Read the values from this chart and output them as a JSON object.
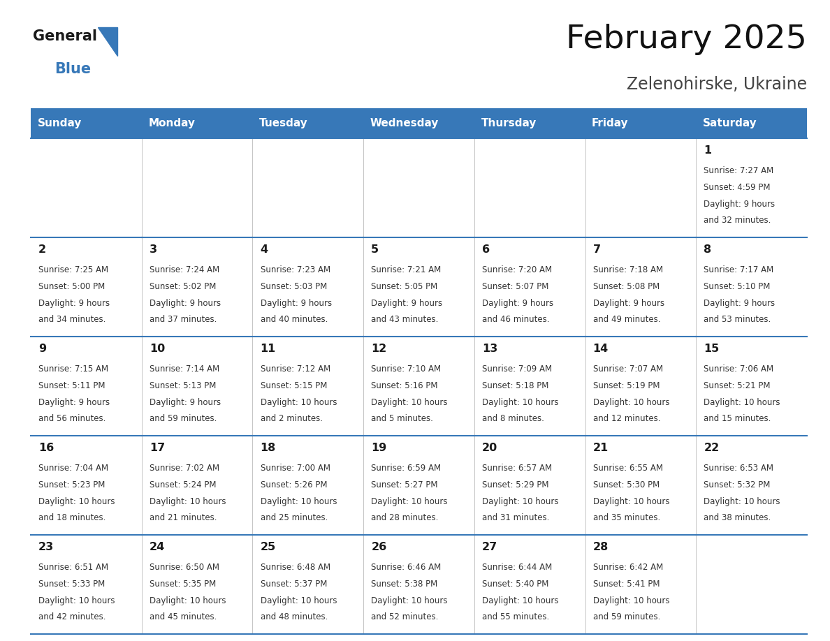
{
  "title": "February 2025",
  "subtitle": "Zelenohirske, Ukraine",
  "header_bg_color": "#3778b8",
  "header_text_color": "#ffffff",
  "day_names": [
    "Sunday",
    "Monday",
    "Tuesday",
    "Wednesday",
    "Thursday",
    "Friday",
    "Saturday"
  ],
  "cell_bg_odd": "#f0f4f8",
  "cell_bg_even": "#ffffff",
  "day_number_color": "#1a1a1a",
  "info_text_color": "#333333",
  "grid_line_color": "#3778b8",
  "separator_color": "#bbbbbb",
  "calendar": [
    [
      null,
      null,
      null,
      null,
      null,
      null,
      {
        "day": 1,
        "sunrise": "7:27 AM",
        "sunset": "4:59 PM",
        "daylight": "9 hours",
        "daylight2": "and 32 minutes."
      }
    ],
    [
      {
        "day": 2,
        "sunrise": "7:25 AM",
        "sunset": "5:00 PM",
        "daylight": "9 hours",
        "daylight2": "and 34 minutes."
      },
      {
        "day": 3,
        "sunrise": "7:24 AM",
        "sunset": "5:02 PM",
        "daylight": "9 hours",
        "daylight2": "and 37 minutes."
      },
      {
        "day": 4,
        "sunrise": "7:23 AM",
        "sunset": "5:03 PM",
        "daylight": "9 hours",
        "daylight2": "and 40 minutes."
      },
      {
        "day": 5,
        "sunrise": "7:21 AM",
        "sunset": "5:05 PM",
        "daylight": "9 hours",
        "daylight2": "and 43 minutes."
      },
      {
        "day": 6,
        "sunrise": "7:20 AM",
        "sunset": "5:07 PM",
        "daylight": "9 hours",
        "daylight2": "and 46 minutes."
      },
      {
        "day": 7,
        "sunrise": "7:18 AM",
        "sunset": "5:08 PM",
        "daylight": "9 hours",
        "daylight2": "and 49 minutes."
      },
      {
        "day": 8,
        "sunrise": "7:17 AM",
        "sunset": "5:10 PM",
        "daylight": "9 hours",
        "daylight2": "and 53 minutes."
      }
    ],
    [
      {
        "day": 9,
        "sunrise": "7:15 AM",
        "sunset": "5:11 PM",
        "daylight": "9 hours",
        "daylight2": "and 56 minutes."
      },
      {
        "day": 10,
        "sunrise": "7:14 AM",
        "sunset": "5:13 PM",
        "daylight": "9 hours",
        "daylight2": "and 59 minutes."
      },
      {
        "day": 11,
        "sunrise": "7:12 AM",
        "sunset": "5:15 PM",
        "daylight": "10 hours",
        "daylight2": "and 2 minutes."
      },
      {
        "day": 12,
        "sunrise": "7:10 AM",
        "sunset": "5:16 PM",
        "daylight": "10 hours",
        "daylight2": "and 5 minutes."
      },
      {
        "day": 13,
        "sunrise": "7:09 AM",
        "sunset": "5:18 PM",
        "daylight": "10 hours",
        "daylight2": "and 8 minutes."
      },
      {
        "day": 14,
        "sunrise": "7:07 AM",
        "sunset": "5:19 PM",
        "daylight": "10 hours",
        "daylight2": "and 12 minutes."
      },
      {
        "day": 15,
        "sunrise": "7:06 AM",
        "sunset": "5:21 PM",
        "daylight": "10 hours",
        "daylight2": "and 15 minutes."
      }
    ],
    [
      {
        "day": 16,
        "sunrise": "7:04 AM",
        "sunset": "5:23 PM",
        "daylight": "10 hours",
        "daylight2": "and 18 minutes."
      },
      {
        "day": 17,
        "sunrise": "7:02 AM",
        "sunset": "5:24 PM",
        "daylight": "10 hours",
        "daylight2": "and 21 minutes."
      },
      {
        "day": 18,
        "sunrise": "7:00 AM",
        "sunset": "5:26 PM",
        "daylight": "10 hours",
        "daylight2": "and 25 minutes."
      },
      {
        "day": 19,
        "sunrise": "6:59 AM",
        "sunset": "5:27 PM",
        "daylight": "10 hours",
        "daylight2": "and 28 minutes."
      },
      {
        "day": 20,
        "sunrise": "6:57 AM",
        "sunset": "5:29 PM",
        "daylight": "10 hours",
        "daylight2": "and 31 minutes."
      },
      {
        "day": 21,
        "sunrise": "6:55 AM",
        "sunset": "5:30 PM",
        "daylight": "10 hours",
        "daylight2": "and 35 minutes."
      },
      {
        "day": 22,
        "sunrise": "6:53 AM",
        "sunset": "5:32 PM",
        "daylight": "10 hours",
        "daylight2": "and 38 minutes."
      }
    ],
    [
      {
        "day": 23,
        "sunrise": "6:51 AM",
        "sunset": "5:33 PM",
        "daylight": "10 hours",
        "daylight2": "and 42 minutes."
      },
      {
        "day": 24,
        "sunrise": "6:50 AM",
        "sunset": "5:35 PM",
        "daylight": "10 hours",
        "daylight2": "and 45 minutes."
      },
      {
        "day": 25,
        "sunrise": "6:48 AM",
        "sunset": "5:37 PM",
        "daylight": "10 hours",
        "daylight2": "and 48 minutes."
      },
      {
        "day": 26,
        "sunrise": "6:46 AM",
        "sunset": "5:38 PM",
        "daylight": "10 hours",
        "daylight2": "and 52 minutes."
      },
      {
        "day": 27,
        "sunrise": "6:44 AM",
        "sunset": "5:40 PM",
        "daylight": "10 hours",
        "daylight2": "and 55 minutes."
      },
      {
        "day": 28,
        "sunrise": "6:42 AM",
        "sunset": "5:41 PM",
        "daylight": "10 hours",
        "daylight2": "and 59 minutes."
      },
      null
    ]
  ]
}
